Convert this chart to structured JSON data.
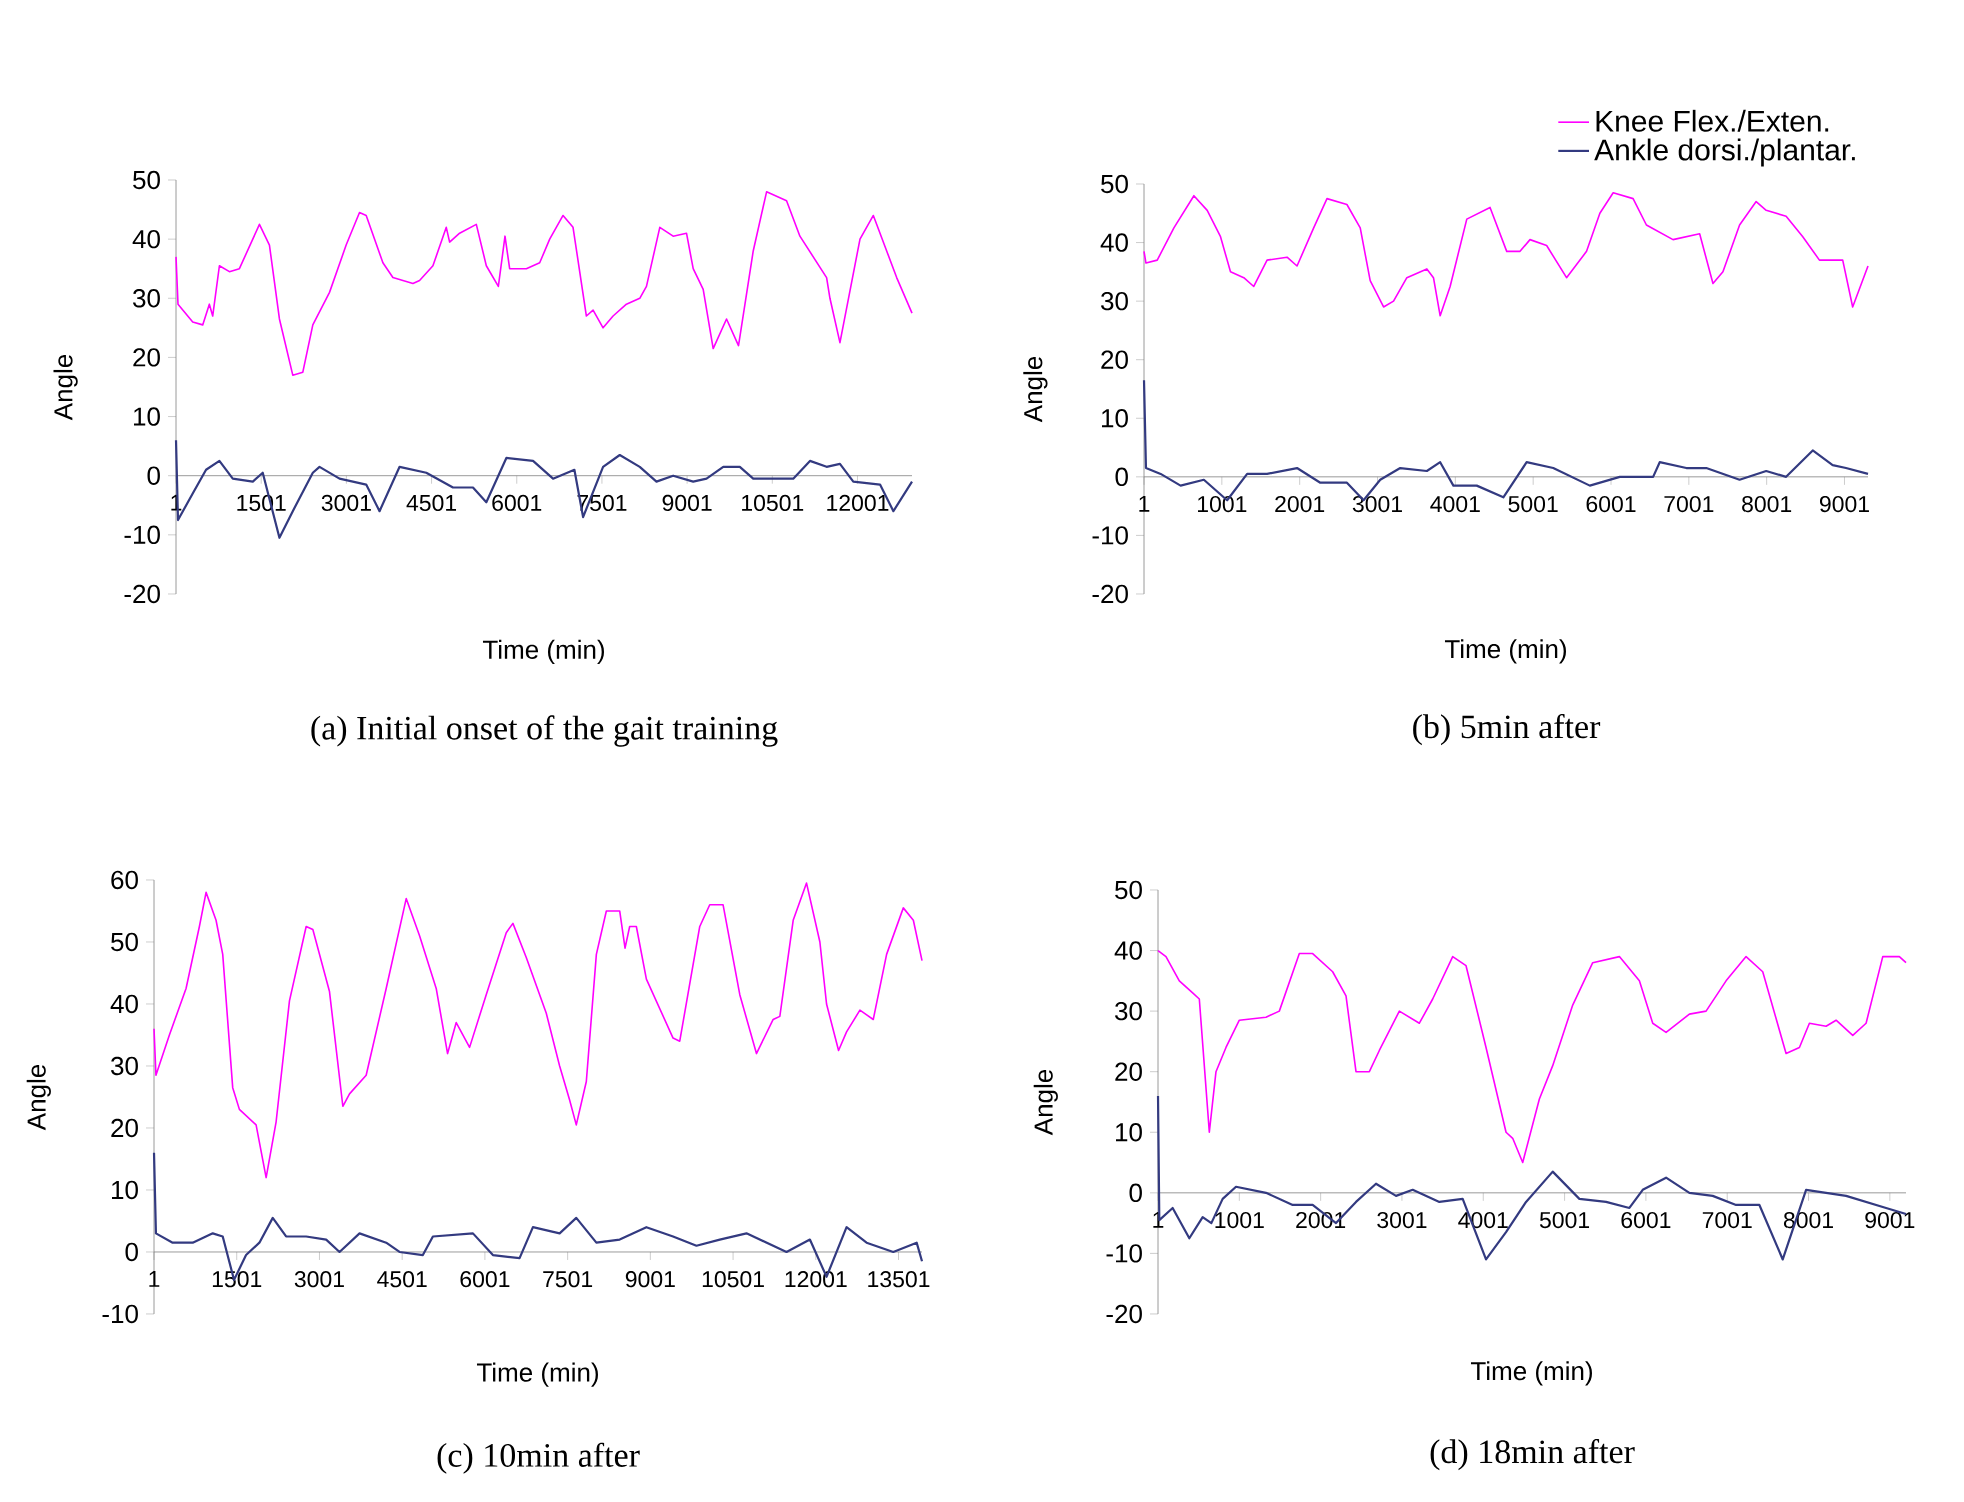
{
  "chart_data": [
    {
      "type": "line",
      "title": "(a) Initial onset of the gait training",
      "xlabel": "Time (min)",
      "ylabel": "Angle",
      "xlim": [
        1,
        12961
      ],
      "ylim": [
        -20,
        50
      ],
      "xticks": [
        1,
        1501,
        3001,
        4501,
        6001,
        7501,
        9001,
        10501,
        12001
      ],
      "yticks": [
        -20,
        -10,
        0,
        10,
        20,
        30,
        40,
        50
      ],
      "series": [
        {
          "color": "#ff00ff",
          "x": [
            1,
            36,
            295,
            471,
            588,
            647,
            765,
            941,
            1117,
            1470,
            1646,
            1822,
            2057,
            2234,
            2410,
            2704,
            2997,
            3232,
            3350,
            3644,
            3820,
            4173,
            4290,
            4525,
            4760,
            4819,
            4995,
            5289,
            5465,
            5677,
            5794,
            5876,
            6170,
            6405,
            6581,
            6816,
            6992,
            7227,
            7345,
            7521,
            7697,
            7932,
            8167,
            8285,
            8520,
            8755,
            8990,
            9108,
            9284,
            9460,
            9695,
            9906,
            10165,
            10400,
            10752,
            10987,
            11457,
            11516,
            11692,
            12045,
            12280,
            12515,
            12691,
            12961
          ],
          "values": [
            37,
            29,
            26,
            25.5,
            29,
            27,
            35.5,
            34.5,
            35,
            42.5,
            39,
            26.5,
            17,
            17.5,
            25.5,
            31,
            39,
            44.5,
            44,
            36,
            33.5,
            32.5,
            33,
            35.5,
            42,
            39.5,
            41,
            42.5,
            35.5,
            32,
            40.5,
            35,
            35,
            36,
            40,
            44,
            42,
            27,
            28,
            25,
            27,
            29,
            30,
            32,
            42,
            40.5,
            41,
            35,
            31.5,
            21.5,
            26.5,
            22,
            38,
            48,
            46.5,
            40.5,
            33.5,
            30,
            22.5,
            40,
            44,
            38,
            33.5,
            27.5
          ]
        },
        {
          "color": "#333a80",
          "x": [
            1,
            36,
            295,
            530,
            765,
            1000,
            1353,
            1528,
            1822,
            2057,
            2410,
            2528,
            2880,
            3350,
            3585,
            3938,
            4408,
            4878,
            5230,
            5465,
            5818,
            6288,
            6640,
            7016,
            7169,
            7521,
            7815,
            8167,
            8461,
            8755,
            9108,
            9343,
            9637,
            9929,
            10165,
            10870,
            11164,
            11457,
            11692,
            11927,
            12398,
            12633,
            12961
          ],
          "values": [
            6,
            -7.5,
            -3,
            1,
            2.5,
            -0.5,
            -1,
            0.5,
            -10.5,
            -6,
            0.5,
            1.5,
            -0.5,
            -1.5,
            -6,
            1.5,
            0.5,
            -2,
            -2,
            -4.5,
            3,
            2.5,
            -0.5,
            1,
            -7,
            1.5,
            3.5,
            1.5,
            -1,
            0,
            -1,
            -0.5,
            1.5,
            1.5,
            -0.5,
            -0.5,
            2.5,
            1.5,
            2,
            -1,
            -1.5,
            -6,
            -1
          ]
        }
      ]
    },
    {
      "type": "line",
      "title": "(b) 5min after",
      "xlabel": "Time (min)",
      "ylabel": "Angle",
      "legend": "top right",
      "xlim": [
        1,
        9303
      ],
      "ylim": [
        -20,
        50
      ],
      "xticks": [
        1,
        1001,
        2001,
        3001,
        4001,
        5001,
        6001,
        7001,
        8001,
        9001
      ],
      "yticks": [
        -20,
        -10,
        0,
        10,
        20,
        30,
        40,
        50
      ],
      "series": [
        {
          "name": "Knee Flex./Exten.",
          "color": "#ff00ff",
          "x": [
            1,
            26,
            171,
            385,
            642,
            813,
            984,
            1112,
            1283,
            1411,
            1582,
            1839,
            1967,
            2181,
            2352,
            2608,
            2779,
            2907,
            3079,
            3207,
            3378,
            3635,
            3720,
            3806,
            3934,
            4148,
            4447,
            4661,
            4832,
            4960,
            5174,
            5430,
            5687,
            5858,
            6029,
            6285,
            6456,
            6798,
            7140,
            7311,
            7439,
            7653,
            7866,
            7995,
            8251,
            8465,
            8679,
            8978,
            9106,
            9303
          ],
          "values": [
            38.5,
            36.5,
            37,
            42.5,
            48,
            45.5,
            41,
            35,
            34,
            32.5,
            37,
            37.5,
            36,
            42.5,
            47.5,
            46.5,
            42.5,
            33.5,
            29,
            30,
            34,
            35.5,
            34,
            27.5,
            32.5,
            44,
            46,
            38.5,
            38.5,
            40.5,
            39.5,
            34,
            38.5,
            45,
            48.5,
            47.5,
            43,
            40.5,
            41.5,
            33,
            35,
            43,
            47,
            45.5,
            44.5,
            41,
            37,
            37,
            29,
            36
          ]
        },
        {
          "name": "Ankle dorsi./plantar.",
          "color": "#333a80",
          "x": [
            1,
            26,
            215,
            471,
            770,
            1069,
            1326,
            1582,
            1967,
            2266,
            2608,
            2822,
            3036,
            3293,
            3635,
            3806,
            3976,
            4276,
            4618,
            4917,
            5259,
            5729,
            6114,
            6542,
            6627,
            6969,
            7225,
            7653,
            7995,
            8251,
            8593,
            8849,
            9020,
            9303
          ],
          "values": [
            16.5,
            1.5,
            0.5,
            -1.5,
            -0.5,
            -4,
            0.5,
            0.5,
            1.5,
            -1,
            -1,
            -4,
            -0.5,
            1.5,
            1,
            2.5,
            -1.5,
            -1.5,
            -3.5,
            2.5,
            1.5,
            -1.5,
            0,
            0,
            2.5,
            1.5,
            1.5,
            -0.5,
            1,
            0,
            4.5,
            2,
            1.5,
            0.5
          ]
        }
      ]
    },
    {
      "type": "line",
      "title": "(c) 10min after",
      "xlabel": "Time (min)",
      "ylabel": "Angle",
      "xlim": [
        1,
        13927
      ],
      "ylim": [
        -10,
        60
      ],
      "xticks": [
        1,
        1501,
        3001,
        4501,
        6001,
        7501,
        9001,
        10501,
        12001,
        13501
      ],
      "yticks": [
        -10,
        0,
        10,
        20,
        30,
        40,
        50,
        60
      ],
      "series": [
        {
          "color": "#ff00ff",
          "x": [
            1,
            36,
            280,
            582,
            824,
            945,
            1126,
            1247,
            1428,
            1549,
            1852,
            2034,
            2215,
            2457,
            2760,
            2881,
            3183,
            3425,
            3546,
            3848,
            4211,
            4574,
            4816,
            5118,
            5324,
            5481,
            5723,
            6025,
            6388,
            6509,
            6751,
            7114,
            7356,
            7537,
            7658,
            7840,
            8022,
            8203,
            8445,
            8542,
            8626,
            8747,
            8929,
            9413,
            9534,
            9897,
            10078,
            10320,
            10623,
            10925,
            11228,
            11349,
            11591,
            11833,
            12075,
            12196,
            12414,
            12559,
            12801,
            13043,
            13285,
            13588,
            13770,
            13927
          ],
          "values": [
            36,
            28.5,
            35,
            42.5,
            52.5,
            58,
            53.5,
            48,
            26.5,
            23,
            20.5,
            12,
            21,
            40.5,
            52.5,
            52,
            42,
            23.5,
            25.5,
            28.5,
            42.5,
            57,
            51,
            42.5,
            32,
            37,
            33,
            41.5,
            51.5,
            53,
            47.5,
            38.5,
            30,
            24.5,
            20.5,
            27.5,
            48,
            55,
            55,
            49,
            52.5,
            52.5,
            44,
            34.5,
            34,
            52.5,
            56,
            56,
            41.5,
            32,
            37.5,
            38,
            53.5,
            59.5,
            50,
            40,
            32.5,
            35.5,
            39,
            37.5,
            48,
            55.5,
            53.5,
            47
          ]
        },
        {
          "color": "#333a80",
          "x": [
            1,
            36,
            339,
            703,
            1066,
            1247,
            1452,
            1670,
            1912,
            2154,
            2396,
            2760,
            3123,
            3365,
            3728,
            4211,
            4453,
            4876,
            5058,
            5784,
            6146,
            6630,
            6872,
            7356,
            7658,
            8022,
            8445,
            8929,
            9413,
            9837,
            10260,
            10744,
            11470,
            11894,
            12196,
            12559,
            12922,
            13406,
            13830,
            13927
          ],
          "values": [
            16,
            3,
            1.5,
            1.5,
            3,
            2.5,
            -4.5,
            -0.5,
            1.5,
            5.5,
            2.5,
            2.5,
            2,
            0,
            3,
            1.5,
            0,
            -0.5,
            2.5,
            3,
            -0.5,
            -1,
            4,
            3,
            5.5,
            1.5,
            2,
            4,
            2.5,
            1,
            2,
            3,
            0,
            2,
            -4,
            4,
            1.5,
            0,
            1.5,
            -1.5
          ]
        }
      ]
    },
    {
      "type": "line",
      "title": "(d) 18min after",
      "xlabel": "Time (min)",
      "ylabel": "Angle",
      "xlim": [
        1,
        9200
      ],
      "ylim": [
        -20,
        50
      ],
      "xticks": [
        1,
        1001,
        2001,
        3001,
        4001,
        5001,
        6001,
        7001,
        8001,
        9001
      ],
      "yticks": [
        -20,
        -10,
        0,
        10,
        20,
        30,
        40,
        50
      ],
      "series": [
        {
          "color": "#ff00ff",
          "x": [
            1,
            99,
            263,
            427,
            509,
            632,
            714,
            837,
            1001,
            1329,
            1493,
            1739,
            1903,
            2149,
            2313,
            2436,
            2600,
            2723,
            2969,
            3215,
            3379,
            3625,
            3789,
            4035,
            4281,
            4363,
            4486,
            4691,
            4855,
            5101,
            5347,
            5675,
            5921,
            6085,
            6249,
            6536,
            6741,
            6987,
            7233,
            7438,
            7725,
            7889,
            8012,
            8217,
            8340,
            8545,
            8709,
            8914,
            9118,
            9200
          ],
          "values": [
            40,
            39,
            35,
            33,
            32,
            10,
            20,
            24,
            28.5,
            29,
            30,
            39.5,
            39.5,
            36.5,
            32.5,
            20,
            20,
            23.5,
            30,
            28,
            32,
            39,
            37.5,
            24,
            10,
            9,
            5,
            15.5,
            21,
            31,
            38,
            39,
            35,
            28,
            26.5,
            29.5,
            30,
            35,
            39,
            36.5,
            23,
            24,
            28,
            27.5,
            28.5,
            26,
            28,
            39,
            39,
            38
          ]
        },
        {
          "color": "#333a80",
          "x": [
            1,
            17,
            181,
            386,
            550,
            657,
            796,
            960,
            1329,
            1657,
            1903,
            2190,
            2436,
            2682,
            2928,
            3133,
            3461,
            3748,
            4035,
            4281,
            4527,
            4855,
            5183,
            5511,
            5798,
            5962,
            6249,
            6536,
            6823,
            7110,
            7397,
            7684,
            7971,
            8217,
            8463,
            8955,
            9200
          ],
          "values": [
            16,
            -4.5,
            -2.5,
            -7.5,
            -4,
            -5,
            -1,
            1,
            0,
            -2,
            -2,
            -5,
            -1.5,
            1.5,
            -0.5,
            0.5,
            -1.5,
            -1,
            -11,
            -6.5,
            -1.5,
            3.5,
            -1,
            -1.5,
            -2.5,
            0.5,
            2.5,
            0,
            -0.5,
            -2,
            -2,
            -11,
            0.5,
            0,
            -0.5,
            -2.5,
            -3.5
          ]
        }
      ]
    }
  ]
}
